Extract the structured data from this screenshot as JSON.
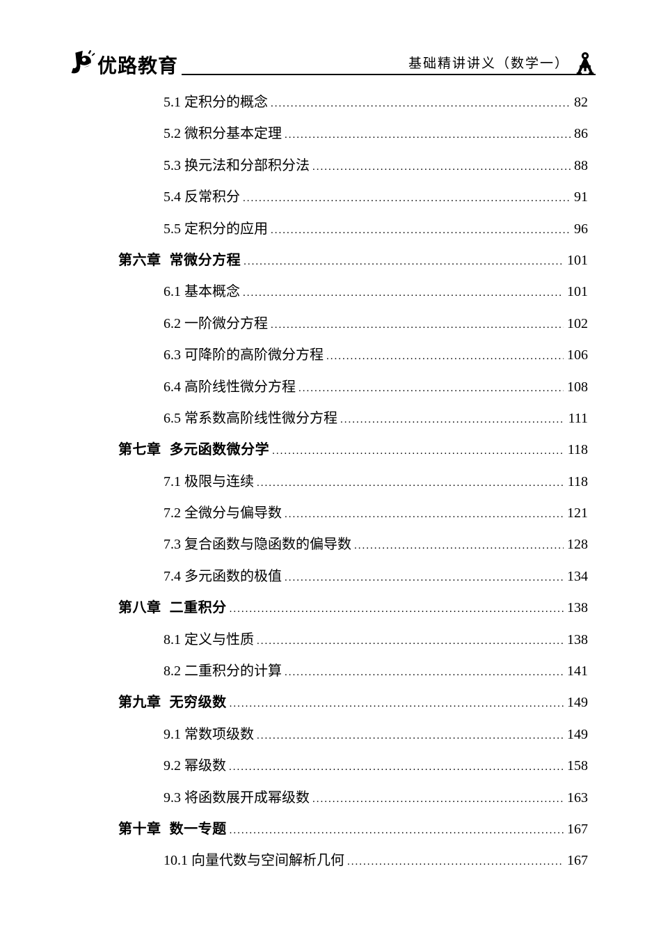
{
  "header": {
    "logo_text": "优路教育",
    "doc_title": "基础精讲讲义（数学一）"
  },
  "colors": {
    "text": "#000000",
    "background": "#ffffff",
    "rule": "#000000"
  },
  "toc": {
    "entries": [
      {
        "level": "section",
        "title": "5.1 定积分的概念",
        "page": "82"
      },
      {
        "level": "section",
        "title": "5.2 微积分基本定理",
        "page": "86"
      },
      {
        "level": "section",
        "title": "5.3 换元法和分部积分法",
        "page": "88"
      },
      {
        "level": "section",
        "title": "5.4 反常积分",
        "page": "91"
      },
      {
        "level": "section",
        "title": "5.5 定积分的应用",
        "page": "96"
      },
      {
        "level": "chapter",
        "title": "第六章  常微分方程",
        "page": "101"
      },
      {
        "level": "section",
        "title": "6.1 基本概念",
        "page": "101"
      },
      {
        "level": "section",
        "title": "6.2 一阶微分方程",
        "page": "102"
      },
      {
        "level": "section",
        "title": "6.3 可降阶的高阶微分方程",
        "page": "106"
      },
      {
        "level": "section",
        "title": "6.4 高阶线性微分方程",
        "page": "108"
      },
      {
        "level": "section",
        "title": "6.5 常系数高阶线性微分方程",
        "page": "111"
      },
      {
        "level": "chapter",
        "title": "第七章  多元函数微分学",
        "page": "118"
      },
      {
        "level": "section",
        "title": "7.1 极限与连续",
        "page": "118"
      },
      {
        "level": "section",
        "title": "7.2 全微分与偏导数",
        "page": "121"
      },
      {
        "level": "section",
        "title": "7.3 复合函数与隐函数的偏导数",
        "page": "128"
      },
      {
        "level": "section",
        "title": "7.4 多元函数的极值",
        "page": "134"
      },
      {
        "level": "chapter",
        "title": "第八章  二重积分",
        "page": "138"
      },
      {
        "level": "section",
        "title": "8.1 定义与性质",
        "page": "138"
      },
      {
        "level": "section",
        "title": "8.2 二重积分的计算",
        "page": "141"
      },
      {
        "level": "chapter",
        "title": "第九章  无穷级数",
        "page": "149"
      },
      {
        "level": "section",
        "title": "9.1 常数项级数",
        "page": "149"
      },
      {
        "level": "section",
        "title": "9.2 幂级数",
        "page": "158"
      },
      {
        "level": "section",
        "title": "9.3 将函数展开成幂级数",
        "page": "163"
      },
      {
        "level": "chapter",
        "title": "第十章  数一专题",
        "page": "167"
      },
      {
        "level": "section",
        "title": "10.1 向量代数与空间解析几何",
        "page": "167"
      }
    ]
  }
}
